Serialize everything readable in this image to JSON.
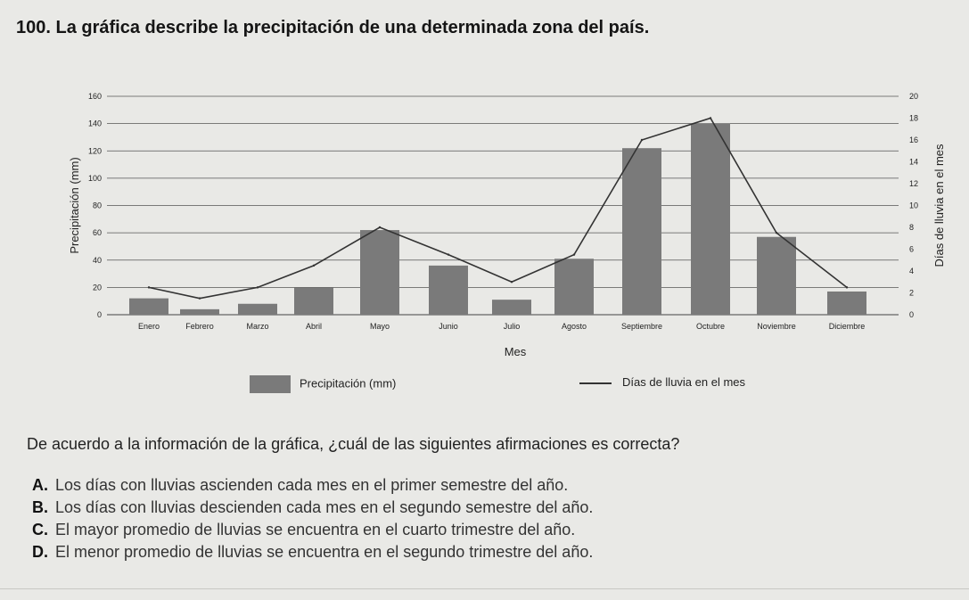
{
  "question": {
    "title": "100. La gráfica describe la precipitación de una determinada zona del país.",
    "prompt": "De acuerdo a la información de la gráfica, ¿cuál de las siguientes afirmaciones es correcta?",
    "options": [
      {
        "letter": "A.",
        "text": "Los días con lluvias ascienden cada mes en el primer semestre del año."
      },
      {
        "letter": "B.",
        "text": "Los días con lluvias descienden cada mes en el segundo semestre del año."
      },
      {
        "letter": "C.",
        "text": "El mayor promedio de lluvias se encuentra en el cuarto trimestre del año."
      },
      {
        "letter": "D.",
        "text": "El menor promedio de lluvias se encuentra en el segundo trimestre del año."
      }
    ]
  },
  "chart_data": {
    "type": "bar",
    "categories": [
      "Enero",
      "Febrero",
      "Marzo",
      "Abril",
      "Mayo",
      "Junio",
      "Julio",
      "Agosto",
      "Septiembre",
      "Octubre",
      "Noviembre",
      "Diciembre"
    ],
    "series": [
      {
        "name": "Precipitación (mm)",
        "type": "bar",
        "axis": "left",
        "values": [
          12,
          4,
          8,
          20,
          62,
          36,
          11,
          41,
          122,
          140,
          57,
          17
        ]
      },
      {
        "name": "Días de lluvia en el mes",
        "type": "line",
        "axis": "right",
        "values": [
          2.5,
          1.5,
          2.5,
          4.5,
          8,
          5.5,
          3,
          5.5,
          16,
          18,
          7.5,
          2.5
        ]
      }
    ],
    "xlabel": "Mes",
    "ylabel": "Precipitación (mm)",
    "y2label": "Días de lluvia en el mes",
    "ylim": [
      0,
      160
    ],
    "y2lim": [
      0,
      20
    ],
    "yticks": [
      0,
      20,
      40,
      60,
      80,
      100,
      120,
      140,
      160
    ],
    "y2ticks": [
      0,
      2,
      4,
      6,
      8,
      10,
      12,
      14,
      16,
      18,
      20
    ],
    "grid": true,
    "legend": "bottom",
    "colors": {
      "bar": "#7a7a7a",
      "line": "#333333",
      "grid": "#555555"
    }
  }
}
